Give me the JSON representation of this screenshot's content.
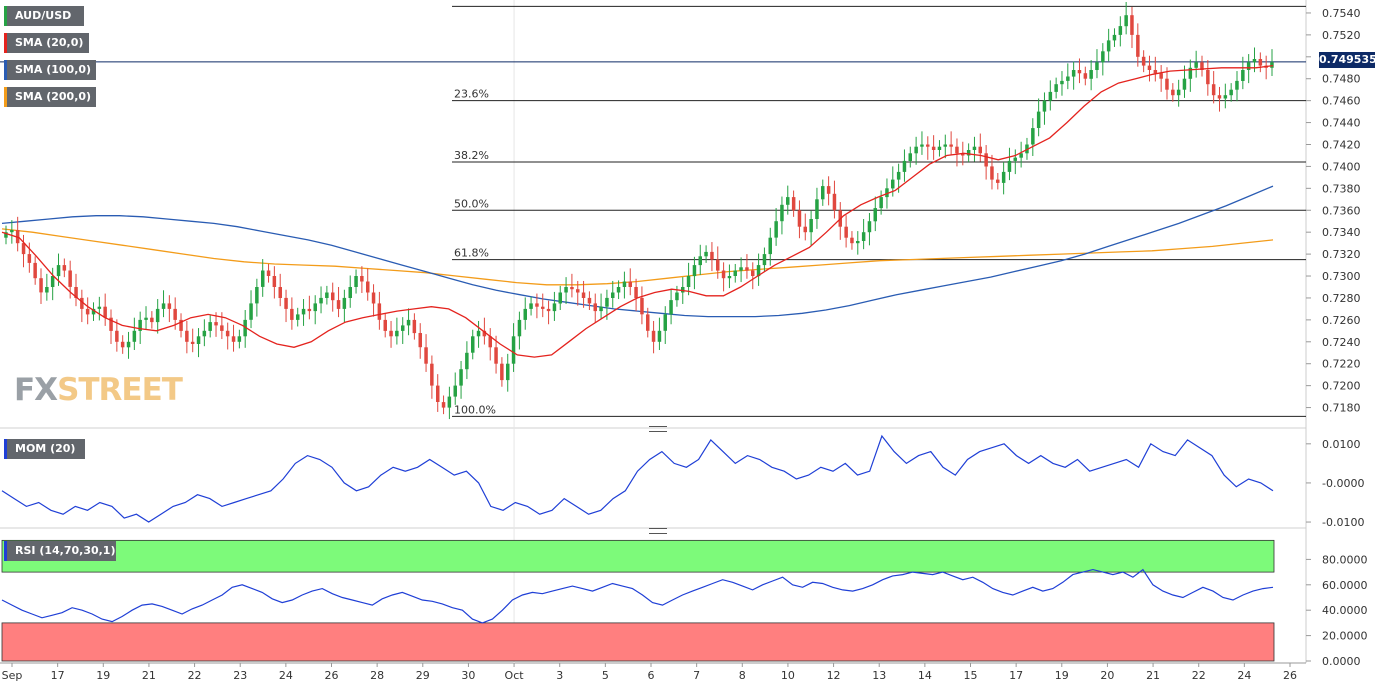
{
  "tags": {
    "symbol": "AUD/USD",
    "sma20": "SMA (20,0)",
    "sma100": "SMA (100,0)",
    "sma200": "SMA (200,0)",
    "mom": "MOM (20)",
    "rsi": "RSI (14,70,30,1)"
  },
  "colors": {
    "up": "#26a244",
    "down": "#e0483f",
    "sma20": "#e4231e",
    "sma100": "#2a5cb3",
    "sma200": "#f39c1a",
    "momentum": "#1f3fd6",
    "rsi": "#1f3fd6",
    "overbought_zone": "#7dfa7a",
    "oversold_zone": "#ff7f7f",
    "last_price_box": "#0d2a66"
  },
  "watermark": {
    "fx": "FX",
    "street": "STREET"
  },
  "last_price": "0.749535",
  "chart_data": {
    "type": "candlestick",
    "symbol": "AUD/USD",
    "timeframe_hint": "4-hour candles",
    "price_axis": {
      "range": [
        0.7165,
        0.755
      ],
      "ticks": [
        "0.7540",
        "0.7520",
        "0.7500",
        "0.7480",
        "0.7460",
        "0.7440",
        "0.7420",
        "0.7400",
        "0.7380",
        "0.7360",
        "0.7340",
        "0.7320",
        "0.7300",
        "0.7280",
        "0.7260",
        "0.7240",
        "0.7220",
        "0.7200",
        "0.7180"
      ]
    },
    "x_axis": {
      "labels": [
        "Sep",
        "17",
        "19",
        "21",
        "22",
        "23",
        "24",
        "26",
        "28",
        "29",
        "30",
        "Oct",
        "3",
        "5",
        "6",
        "7",
        "8",
        "10",
        "12",
        "13",
        "14",
        "15",
        "17",
        "19",
        "20",
        "21",
        "22",
        "24",
        "26"
      ]
    },
    "fibonacci": [
      {
        "label": "23.6%",
        "price": 0.746
      },
      {
        "label": "38.2%",
        "price": 0.7404
      },
      {
        "label": "50.0%",
        "price": 0.736
      },
      {
        "label": "61.8%",
        "price": 0.7315
      },
      {
        "label": "100.0%",
        "price": 0.7172
      }
    ],
    "fib_top_price": 0.7546,
    "last_price": 0.749535,
    "candles_close": [
      0.734,
      0.7342,
      0.733,
      0.732,
      0.7312,
      0.7298,
      0.7285,
      0.729,
      0.73,
      0.731,
      0.7305,
      0.729,
      0.728,
      0.727,
      0.7265,
      0.727,
      0.7272,
      0.7262,
      0.725,
      0.724,
      0.7235,
      0.724,
      0.725,
      0.726,
      0.7262,
      0.7258,
      0.727,
      0.7275,
      0.727,
      0.726,
      0.725,
      0.724,
      0.7238,
      0.7245,
      0.725,
      0.7258,
      0.7255,
      0.725,
      0.7245,
      0.724,
      0.7245,
      0.726,
      0.7275,
      0.729,
      0.7305,
      0.73,
      0.729,
      0.728,
      0.727,
      0.726,
      0.7265,
      0.727,
      0.7268,
      0.7275,
      0.728,
      0.7285,
      0.7278,
      0.727,
      0.728,
      0.729,
      0.73,
      0.7295,
      0.7285,
      0.7275,
      0.726,
      0.725,
      0.7245,
      0.725,
      0.7255,
      0.726,
      0.7248,
      0.7235,
      0.722,
      0.72,
      0.7185,
      0.718,
      0.719,
      0.72,
      0.7215,
      0.723,
      0.7245,
      0.725,
      0.7245,
      0.7235,
      0.722,
      0.7205,
      0.722,
      0.7245,
      0.726,
      0.727,
      0.7275,
      0.7272,
      0.727,
      0.7268,
      0.7275,
      0.7285,
      0.729,
      0.7288,
      0.7285,
      0.728,
      0.7275,
      0.7268,
      0.7272,
      0.728,
      0.7285,
      0.729,
      0.7295,
      0.729,
      0.728,
      0.7265,
      0.725,
      0.724,
      0.725,
      0.7265,
      0.7278,
      0.7285,
      0.729,
      0.73,
      0.731,
      0.7318,
      0.7322,
      0.7315,
      0.7305,
      0.7298,
      0.73,
      0.7305,
      0.7308,
      0.7305,
      0.73,
      0.731,
      0.732,
      0.7335,
      0.735,
      0.7365,
      0.7372,
      0.736,
      0.7345,
      0.734,
      0.7352,
      0.737,
      0.7382,
      0.7375,
      0.736,
      0.7345,
      0.7335,
      0.733,
      0.7332,
      0.734,
      0.735,
      0.7362,
      0.7372,
      0.738,
      0.7388,
      0.7395,
      0.7405,
      0.7412,
      0.7418,
      0.742,
      0.7418,
      0.7415,
      0.7418,
      0.742,
      0.7418,
      0.7412,
      0.741,
      0.7415,
      0.7418,
      0.7412,
      0.74,
      0.7388,
      0.7385,
      0.7395,
      0.7405,
      0.7408,
      0.7412,
      0.742,
      0.7435,
      0.745,
      0.746,
      0.7468,
      0.7475,
      0.7478,
      0.7482,
      0.7488,
      0.7485,
      0.748,
      0.7488,
      0.7495,
      0.7505,
      0.7515,
      0.752,
      0.7528,
      0.7538,
      0.752,
      0.75,
      0.7492,
      0.7488,
      0.7485,
      0.748,
      0.747,
      0.7465,
      0.747,
      0.748,
      0.749,
      0.7495,
      0.7488,
      0.7475,
      0.7465,
      0.7462,
      0.7465,
      0.747,
      0.7478,
      0.7488,
      0.7495,
      0.7498,
      0.7492,
      0.749,
      0.7495
    ],
    "sma20": [
      0.734,
      0.7335,
      0.7318,
      0.73,
      0.7285,
      0.7272,
      0.7262,
      0.7255,
      0.7252,
      0.725,
      0.7255,
      0.7262,
      0.7265,
      0.7262,
      0.7255,
      0.7245,
      0.7238,
      0.7235,
      0.724,
      0.725,
      0.7258,
      0.7262,
      0.7265,
      0.7268,
      0.727,
      0.7272,
      0.727,
      0.7262,
      0.725,
      0.7238,
      0.7228,
      0.7226,
      0.7228,
      0.724,
      0.7252,
      0.7262,
      0.7272,
      0.728,
      0.7285,
      0.7288,
      0.7286,
      0.7282,
      0.7282,
      0.729,
      0.73,
      0.731,
      0.7318,
      0.7326,
      0.734,
      0.7355,
      0.7365,
      0.7372,
      0.7378,
      0.739,
      0.7402,
      0.741,
      0.7412,
      0.741,
      0.7406,
      0.741,
      0.7418,
      0.7426,
      0.744,
      0.7455,
      0.7468,
      0.7476,
      0.748,
      0.7484,
      0.7487,
      0.7488,
      0.7489,
      0.749,
      0.749,
      0.749,
      0.7492
    ],
    "sma100": [
      0.7348,
      0.735,
      0.7352,
      0.7354,
      0.7355,
      0.7355,
      0.7354,
      0.7352,
      0.735,
      0.7348,
      0.7345,
      0.7341,
      0.7337,
      0.7333,
      0.7328,
      0.7322,
      0.7316,
      0.731,
      0.7304,
      0.7298,
      0.7292,
      0.7287,
      0.7283,
      0.7279,
      0.7276,
      0.7273,
      0.727,
      0.7268,
      0.7266,
      0.7264,
      0.7263,
      0.7263,
      0.7263,
      0.7264,
      0.7266,
      0.7269,
      0.7273,
      0.7278,
      0.7283,
      0.7287,
      0.7291,
      0.7295,
      0.7299,
      0.7304,
      0.7309,
      0.7314,
      0.732,
      0.7327,
      0.7334,
      0.7341,
      0.7348,
      0.7356,
      0.7364,
      0.7373,
      0.7382
    ],
    "sma200": [
      0.7343,
      0.734,
      0.7336,
      0.7332,
      0.7328,
      0.7324,
      0.732,
      0.7316,
      0.7313,
      0.7311,
      0.731,
      0.7309,
      0.7307,
      0.7305,
      0.7303,
      0.73,
      0.7297,
      0.7294,
      0.7292,
      0.7292,
      0.7293,
      0.7295,
      0.7298,
      0.7301,
      0.7304,
      0.7306,
      0.7308,
      0.731,
      0.7312,
      0.7314,
      0.7315,
      0.7316,
      0.7317,
      0.7318,
      0.7319,
      0.732,
      0.7321,
      0.7322,
      0.7323,
      0.7325,
      0.7327,
      0.733,
      0.7333
    ],
    "momentum": {
      "axis_ticks": [
        "0.0100",
        "-0.0000",
        "-0.0100"
      ],
      "range": [
        -0.0105,
        0.012
      ],
      "values": [
        -0.002,
        -0.004,
        -0.006,
        -0.005,
        -0.007,
        -0.008,
        -0.006,
        -0.007,
        -0.005,
        -0.006,
        -0.009,
        -0.008,
        -0.01,
        -0.008,
        -0.006,
        -0.005,
        -0.003,
        -0.004,
        -0.006,
        -0.005,
        -0.004,
        -0.003,
        -0.002,
        0.001,
        0.005,
        0.007,
        0.006,
        0.004,
        0.0,
        -0.002,
        -0.001,
        0.002,
        0.004,
        0.003,
        0.004,
        0.006,
        0.004,
        0.002,
        0.003,
        0.0,
        -0.006,
        -0.007,
        -0.005,
        -0.006,
        -0.008,
        -0.007,
        -0.004,
        -0.006,
        -0.008,
        -0.007,
        -0.004,
        -0.002,
        0.003,
        0.006,
        0.008,
        0.005,
        0.004,
        0.006,
        0.011,
        0.008,
        0.005,
        0.007,
        0.006,
        0.004,
        0.003,
        0.001,
        0.002,
        0.004,
        0.003,
        0.005,
        0.002,
        0.003,
        0.012,
        0.008,
        0.005,
        0.007,
        0.008,
        0.004,
        0.002,
        0.006,
        0.008,
        0.009,
        0.01,
        0.007,
        0.005,
        0.007,
        0.005,
        0.004,
        0.006,
        0.003,
        0.004,
        0.005,
        0.006,
        0.004,
        0.01,
        0.008,
        0.007,
        0.011,
        0.009,
        0.007,
        0.002,
        -0.001,
        0.001,
        0.0,
        -0.002
      ]
    },
    "rsi": {
      "axis_ticks": [
        "80.0000",
        "60.0000",
        "40.0000",
        "20.0000",
        "0.0000"
      ],
      "range": [
        0,
        100
      ],
      "overbought": 70,
      "oversold": 30,
      "zone_upper_top": 95,
      "values": [
        48,
        44,
        40,
        37,
        34,
        36,
        38,
        42,
        40,
        37,
        33,
        31,
        35,
        40,
        44,
        45,
        43,
        40,
        37,
        41,
        44,
        48,
        52,
        58,
        60,
        57,
        54,
        49,
        46,
        48,
        52,
        55,
        57,
        53,
        50,
        48,
        46,
        44,
        49,
        52,
        54,
        51,
        48,
        47,
        45,
        42,
        40,
        33,
        30,
        33,
        40,
        48,
        52,
        54,
        53,
        55,
        57,
        59,
        57,
        55,
        58,
        61,
        59,
        57,
        52,
        46,
        44,
        48,
        52,
        55,
        58,
        61,
        64,
        62,
        59,
        56,
        60,
        63,
        66,
        60,
        58,
        62,
        61,
        58,
        56,
        55,
        57,
        60,
        64,
        67,
        68,
        70,
        69,
        68,
        70,
        67,
        64,
        66,
        62,
        57,
        54,
        52,
        55,
        58,
        55,
        57,
        62,
        68,
        70,
        72,
        70,
        68,
        70,
        66,
        72,
        60,
        55,
        52,
        50,
        54,
        58,
        55,
        50,
        48,
        52,
        55,
        57,
        58
      ]
    }
  }
}
